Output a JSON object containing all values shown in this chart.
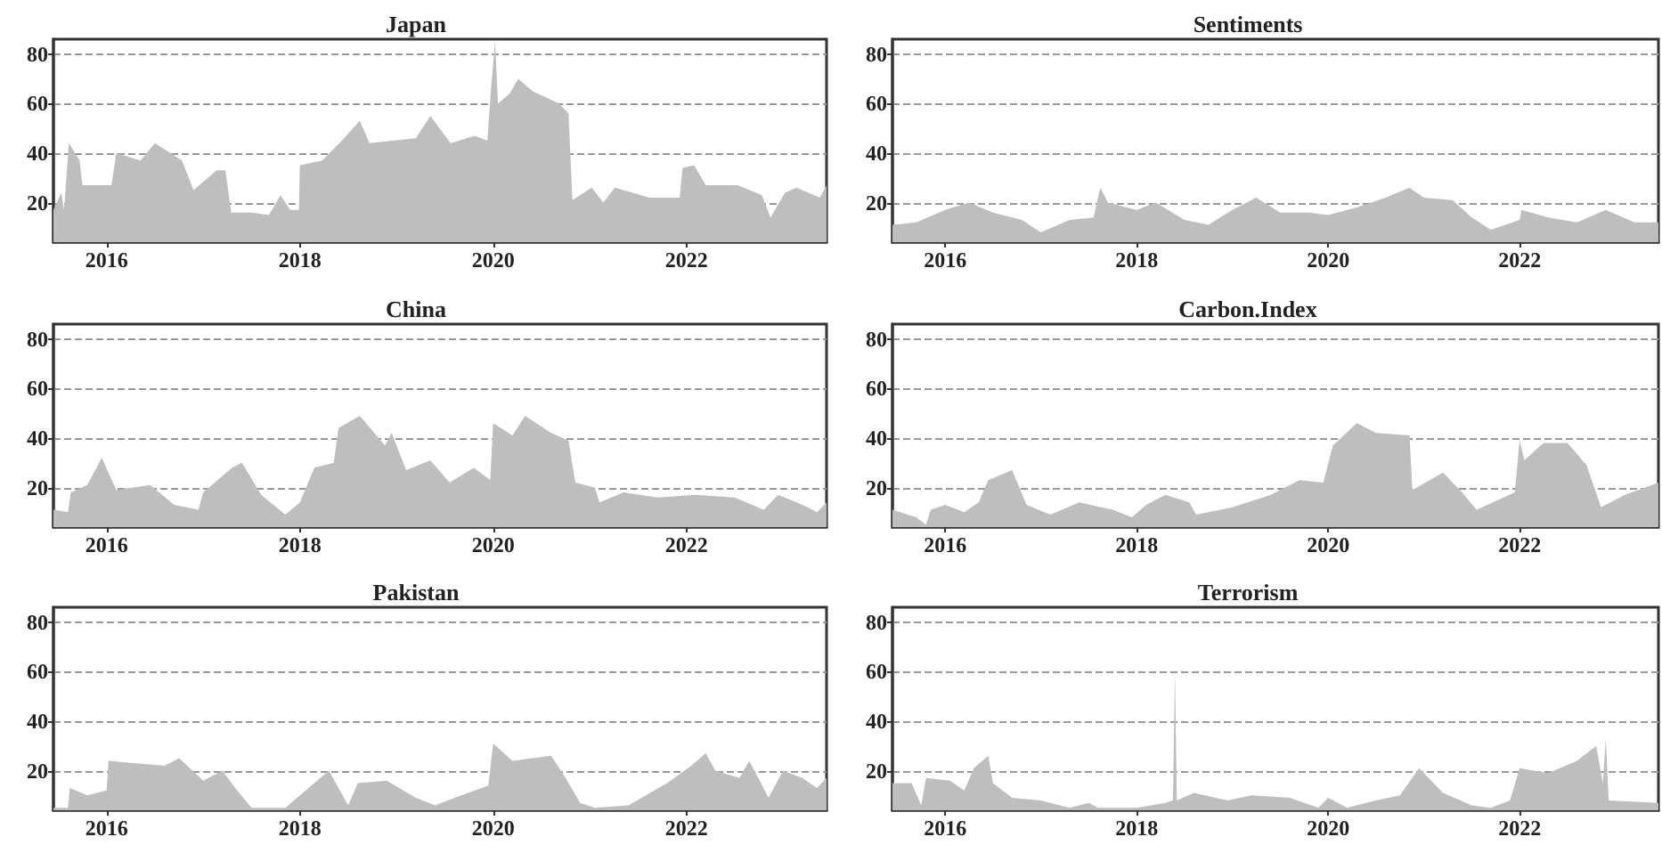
{
  "chart_data": [
    {
      "type": "area",
      "title": "Japan",
      "color": "#bebebe",
      "xlim": [
        2015.45,
        2023.45
      ],
      "xticks": [
        2016,
        2018,
        2020,
        2022
      ],
      "ylim": [
        4,
        86
      ],
      "yticks": [
        20,
        40,
        60,
        80
      ],
      "grid": "y",
      "line_style": "dashed",
      "x": [
        2015.45,
        2015.53,
        2015.56,
        2015.61,
        2015.72,
        2015.75,
        2016.05,
        2016.1,
        2016.35,
        2016.5,
        2016.78,
        2016.9,
        2017.14,
        2017.23,
        2017.29,
        2017.5,
        2017.68,
        2017.8,
        2017.9,
        2017.99,
        2018.0,
        2018.23,
        2018.41,
        2018.62,
        2018.72,
        2019.2,
        2019.35,
        2019.56,
        2019.81,
        2019.94,
        2019.98,
        2020.02,
        2020.05,
        2020.17,
        2020.26,
        2020.41,
        2020.68,
        2020.78,
        2020.82,
        2021.02,
        2021.14,
        2021.26,
        2021.62,
        2021.93,
        2021.96,
        2022.08,
        2022.2,
        2022.53,
        2022.78,
        2022.87,
        2023.02,
        2023.14,
        2023.38,
        2023.45
      ],
      "values": [
        17,
        24,
        17,
        44,
        37,
        27,
        27,
        40,
        37,
        44,
        37,
        25,
        33,
        33,
        16,
        16,
        15,
        23,
        17,
        17,
        35,
        37,
        44,
        53,
        44,
        46,
        55,
        44,
        47,
        45,
        67,
        85,
        60,
        64,
        70,
        65,
        60,
        56,
        21,
        26,
        20,
        26,
        22,
        22,
        34,
        35,
        27,
        27,
        23,
        14,
        24,
        26,
        22,
        27
      ]
    },
    {
      "type": "area",
      "title": "Sentiments",
      "color": "#bebebe",
      "xlim": [
        2015.45,
        2023.45
      ],
      "xticks": [
        2016,
        2018,
        2020,
        2022
      ],
      "ylim": [
        4,
        86
      ],
      "yticks": [
        20,
        40,
        60,
        80
      ],
      "grid": "y",
      "line_style": "dashed",
      "x": [
        2015.45,
        2015.7,
        2016.0,
        2016.25,
        2016.5,
        2016.8,
        2017.0,
        2017.3,
        2017.55,
        2017.62,
        2017.7,
        2018.0,
        2018.2,
        2018.5,
        2018.75,
        2019.0,
        2019.25,
        2019.5,
        2019.8,
        2020.0,
        2020.3,
        2020.6,
        2020.85,
        2021.0,
        2021.3,
        2021.5,
        2021.7,
        2022.0,
        2022.02,
        2022.3,
        2022.6,
        2022.9,
        2023.2,
        2023.45
      ],
      "values": [
        11,
        12,
        17,
        20,
        16,
        13,
        8,
        13,
        14,
        26,
        20,
        17,
        20,
        13,
        11,
        17,
        22,
        16,
        16,
        15,
        18,
        22,
        26,
        22,
        21,
        14,
        9,
        13,
        17,
        14,
        12,
        17,
        12,
        12
      ]
    },
    {
      "type": "area",
      "title": "China",
      "color": "#bebebe",
      "xlim": [
        2015.45,
        2023.45
      ],
      "xticks": [
        2016,
        2018,
        2020,
        2022
      ],
      "ylim": [
        4,
        86
      ],
      "yticks": [
        20,
        40,
        60,
        80
      ],
      "grid": "y",
      "line_style": "dashed",
      "x": [
        2015.45,
        2015.6,
        2015.63,
        2015.8,
        2015.95,
        2016.1,
        2016.45,
        2016.7,
        2016.95,
        2017.0,
        2017.3,
        2017.4,
        2017.6,
        2017.85,
        2018.0,
        2018.15,
        2018.35,
        2018.4,
        2018.62,
        2018.88,
        2018.95,
        2019.1,
        2019.35,
        2019.55,
        2019.8,
        2019.97,
        2020.0,
        2020.2,
        2020.33,
        2020.6,
        2020.78,
        2020.85,
        2021.05,
        2021.1,
        2021.35,
        2021.7,
        2022.1,
        2022.5,
        2022.8,
        2022.95,
        2023.2,
        2023.35,
        2023.45
      ],
      "values": [
        11,
        10,
        18,
        21,
        32,
        19,
        21,
        13,
        11,
        18,
        28,
        30,
        17,
        9,
        14,
        28,
        30,
        44,
        49,
        37,
        42,
        27,
        31,
        22,
        28,
        23,
        46,
        41,
        49,
        42,
        39,
        22,
        20,
        14,
        18,
        16,
        17,
        16,
        11,
        17,
        13,
        10,
        14
      ]
    },
    {
      "type": "area",
      "title": "Carbon.Index",
      "color": "#bebebe",
      "xlim": [
        2015.45,
        2023.45
      ],
      "xticks": [
        2016,
        2018,
        2020,
        2022
      ],
      "ylim": [
        4,
        86
      ],
      "yticks": [
        20,
        40,
        60,
        80
      ],
      "grid": "y",
      "line_style": "dashed",
      "x": [
        2015.45,
        2015.7,
        2015.8,
        2015.85,
        2016.0,
        2016.2,
        2016.35,
        2016.45,
        2016.7,
        2016.85,
        2017.1,
        2017.4,
        2017.75,
        2017.95,
        2018.1,
        2018.3,
        2018.55,
        2018.62,
        2019.0,
        2019.4,
        2019.7,
        2019.95,
        2020.05,
        2020.3,
        2020.5,
        2020.85,
        2020.88,
        2021.2,
        2021.4,
        2021.55,
        2021.95,
        2022.0,
        2022.05,
        2022.25,
        2022.5,
        2022.7,
        2022.85,
        2023.1,
        2023.45
      ],
      "values": [
        11,
        8,
        5,
        11,
        13,
        10,
        14,
        23,
        27,
        13,
        9,
        14,
        11,
        8,
        13,
        17,
        14,
        9,
        12,
        17,
        23,
        22,
        37,
        46,
        42,
        41,
        19,
        26,
        18,
        11,
        18,
        39,
        31,
        38,
        38,
        29,
        12,
        17,
        22
      ]
    },
    {
      "type": "area",
      "title": "Pakistan",
      "color": "#bebebe",
      "xlim": [
        2015.45,
        2023.45
      ],
      "xticks": [
        2016,
        2018,
        2020,
        2022
      ],
      "ylim": [
        4,
        86
      ],
      "yticks": [
        20,
        40,
        60,
        80
      ],
      "grid": "y",
      "line_style": "dashed",
      "x": [
        2015.45,
        2015.6,
        2015.62,
        2015.8,
        2016.0,
        2016.02,
        2016.3,
        2016.6,
        2016.75,
        2017.0,
        2017.2,
        2017.35,
        2017.5,
        2017.85,
        2018.0,
        2018.3,
        2018.5,
        2018.6,
        2018.9,
        2019.2,
        2019.4,
        2019.6,
        2019.95,
        2020.0,
        2020.2,
        2020.6,
        2020.75,
        2020.9,
        2021.05,
        2021.4,
        2021.8,
        2022.05,
        2022.2,
        2022.3,
        2022.55,
        2022.65,
        2022.85,
        2023.0,
        2023.2,
        2023.35,
        2023.45
      ],
      "values": [
        5,
        5,
        13,
        10,
        12,
        24,
        23,
        22,
        25,
        16,
        20,
        12,
        5,
        5,
        10,
        20,
        6,
        15,
        16,
        9,
        6,
        9,
        14,
        31,
        24,
        26,
        17,
        7,
        5,
        6,
        15,
        22,
        27,
        20,
        17,
        24,
        9,
        20,
        17,
        13,
        17
      ]
    },
    {
      "type": "area",
      "title": "Terrorism",
      "color": "#bebebe",
      "xlim": [
        2015.45,
        2023.45
      ],
      "xticks": [
        2016,
        2018,
        2020,
        2022
      ],
      "ylim": [
        4,
        86
      ],
      "yticks": [
        20,
        40,
        60,
        80
      ],
      "grid": "y",
      "line_style": "dashed",
      "x": [
        2015.45,
        2015.65,
        2015.75,
        2015.8,
        2016.05,
        2016.2,
        2016.3,
        2016.45,
        2016.5,
        2016.7,
        2017.0,
        2017.3,
        2017.5,
        2017.6,
        2018.0,
        2018.3,
        2018.38,
        2018.4,
        2018.42,
        2018.6,
        2018.95,
        2019.2,
        2019.6,
        2019.9,
        2020.0,
        2020.2,
        2020.5,
        2020.75,
        2020.95,
        2021.2,
        2021.5,
        2021.7,
        2021.9,
        2022.0,
        2022.3,
        2022.6,
        2022.8,
        2022.87,
        2022.9,
        2022.93,
        2023.45
      ],
      "values": [
        15,
        15,
        6,
        17,
        16,
        12,
        21,
        26,
        15,
        9,
        8,
        5,
        7,
        5,
        5,
        7,
        8,
        60,
        8,
        11,
        8,
        10,
        9,
        5,
        9,
        5,
        8,
        10,
        21,
        11,
        6,
        5,
        8,
        21,
        19,
        24,
        30,
        15,
        33,
        8,
        7
      ]
    }
  ]
}
